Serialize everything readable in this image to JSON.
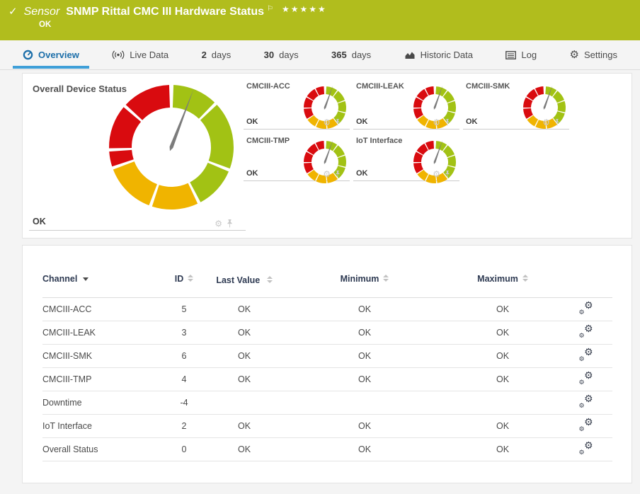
{
  "header": {
    "kind_label": "Sensor",
    "title": "SNMP Rittal CMC III Hardware Status",
    "status": "OK",
    "stars": "★★★★★",
    "check_icon": "✓",
    "flag_icon": "⚐"
  },
  "tabs": {
    "overview": {
      "label": "Overview"
    },
    "live_data": {
      "label": "Live Data"
    },
    "days2": {
      "num": "2",
      "unit": "days"
    },
    "days30": {
      "num": "30",
      "unit": "days"
    },
    "days365": {
      "num": "365",
      "unit": "days"
    },
    "historic": {
      "label": "Historic Data"
    },
    "log": {
      "label": "Log"
    },
    "settings": {
      "label": "Settings"
    }
  },
  "overview_panel": {
    "main_gauge": {
      "title": "Overall Device Status",
      "status": "OK"
    },
    "small_gauges": [
      {
        "title": "CMCIII-ACC",
        "status": "OK"
      },
      {
        "title": "CMCIII-LEAK",
        "status": "OK"
      },
      {
        "title": "CMCIII-SMK",
        "status": "OK"
      },
      {
        "title": "CMCIII-TMP",
        "status": "OK"
      },
      {
        "title": "IoT Interface",
        "status": "OK"
      }
    ]
  },
  "table": {
    "columns": {
      "channel": "Channel",
      "id": "ID",
      "last_value": "Last Value",
      "minimum": "Minimum",
      "maximum": "Maximum"
    },
    "rows": [
      {
        "channel": "CMCIII-ACC",
        "id": "5",
        "last_value": "OK",
        "minimum": "OK",
        "maximum": "OK"
      },
      {
        "channel": "CMCIII-LEAK",
        "id": "3",
        "last_value": "OK",
        "minimum": "OK",
        "maximum": "OK"
      },
      {
        "channel": "CMCIII-SMK",
        "id": "6",
        "last_value": "OK",
        "minimum": "OK",
        "maximum": "OK"
      },
      {
        "channel": "CMCIII-TMP",
        "id": "4",
        "last_value": "OK",
        "minimum": "OK",
        "maximum": "OK"
      },
      {
        "channel": "Downtime",
        "id": "-4",
        "last_value": "",
        "minimum": "",
        "maximum": ""
      },
      {
        "channel": "IoT Interface",
        "id": "2",
        "last_value": "OK",
        "minimum": "OK",
        "maximum": "OK"
      },
      {
        "channel": "Overall Status",
        "id": "0",
        "last_value": "OK",
        "minimum": "OK",
        "maximum": "OK"
      }
    ]
  },
  "colors": {
    "header_bg": "#b1bd1d",
    "active_tab_text": "#1b6ea9",
    "tab_underline": "#3f9fd8",
    "gauge_green": "#a2c214",
    "gauge_yellow": "#f0b400",
    "gauge_red": "#d90b0f",
    "needle": "#7c7c7c"
  },
  "gauge_spec": {
    "colors": {
      "green": "#a2c214",
      "yellow": "#f0b400",
      "red": "#d90b0f",
      "needle": "#7c7c7c"
    },
    "big": {
      "needle_angle": 21,
      "segments": [
        [
          "green",
          2,
          44
        ],
        [
          "green",
          47,
          110
        ],
        [
          "green",
          113,
          152
        ],
        [
          "yellow",
          155,
          198
        ],
        [
          "yellow",
          201,
          249
        ],
        [
          "red",
          252,
          266
        ],
        [
          "red",
          269,
          310
        ],
        [
          "red",
          313,
          358
        ]
      ]
    },
    "small": {
      "needle_angle": 20,
      "segments": [
        [
          "green",
          4,
          35
        ],
        [
          "green",
          38,
          69
        ],
        [
          "green",
          72,
          103
        ],
        [
          "green",
          106,
          140
        ],
        [
          "yellow",
          143,
          173
        ],
        [
          "yellow",
          176,
          205
        ],
        [
          "yellow",
          208,
          235
        ],
        [
          "red",
          238,
          267
        ],
        [
          "red",
          270,
          299
        ],
        [
          "red",
          302,
          331
        ],
        [
          "red",
          334,
          357
        ]
      ]
    }
  }
}
